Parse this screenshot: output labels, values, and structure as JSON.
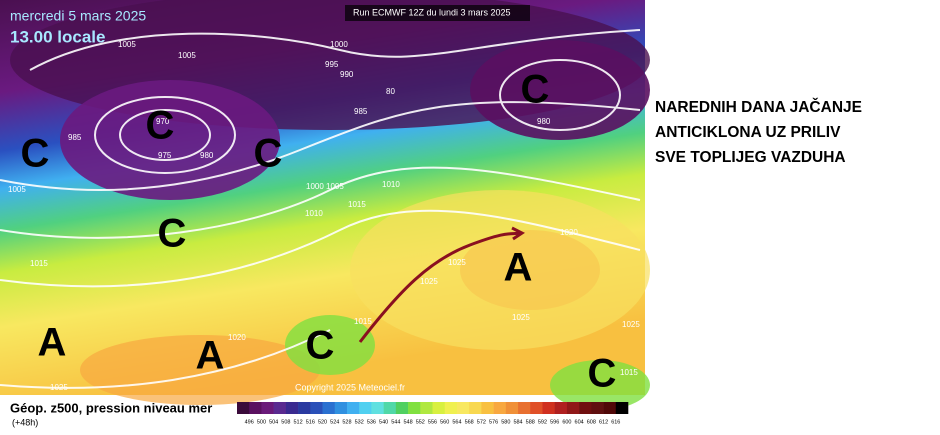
{
  "header": {
    "date": "mercredi 5 mars 2025",
    "time": "13.00 locale",
    "run": "Run ECMWF 12Z du lundi 3 mars 2025"
  },
  "pressure_labels": [
    "1005",
    "1005",
    "1000",
    "995",
    "990",
    "985",
    "80",
    "980",
    "970",
    "975",
    "980",
    "985",
    "1005",
    "1000 1005",
    "1010",
    "1015",
    "1010",
    "1015",
    "1020",
    "1025",
    "1025",
    "1025",
    "1025",
    "1020",
    "1015",
    "1015",
    "1025"
  ],
  "systems": [
    "C",
    "C",
    "C",
    "C",
    "C",
    "C",
    "C",
    "A",
    "A",
    "A"
  ],
  "copyright": "Copyright 2025 Meteociel.fr",
  "caption": {
    "title": "Géop. z500, pression niveau mer",
    "step": "(+48h)"
  },
  "colorbar": {
    "ticks": [
      "496",
      "500",
      "504",
      "508",
      "512",
      "516",
      "520",
      "524",
      "528",
      "532",
      "536",
      "540",
      "544",
      "548",
      "552",
      "556",
      "560",
      "564",
      "568",
      "572",
      "576",
      "580",
      "584",
      "588",
      "592",
      "596",
      "600",
      "604",
      "608",
      "612",
      "616"
    ],
    "colors": [
      "#3a0a3a",
      "#5a1060",
      "#6a1a7a",
      "#5a2a90",
      "#3a2a90",
      "#2a3aa0",
      "#2a50b8",
      "#2a70d0",
      "#3090e0",
      "#40b0f0",
      "#50d0f0",
      "#60e0e0",
      "#50d8a8",
      "#50d060",
      "#80e040",
      "#b0e840",
      "#d8f040",
      "#f0f050",
      "#f8e860",
      "#f8d850",
      "#f8c040",
      "#f8a840",
      "#f09038",
      "#e87030",
      "#e05028",
      "#d03020",
      "#b02020",
      "#901818",
      "#701010",
      "#601010",
      "#500808",
      "#000000"
    ]
  },
  "headline": [
    "NAREDNIH DANA JAČANJE",
    "ANTICIKLONA UZ PRILIV",
    "SVE TOPLIJEG VAZDUHA"
  ]
}
